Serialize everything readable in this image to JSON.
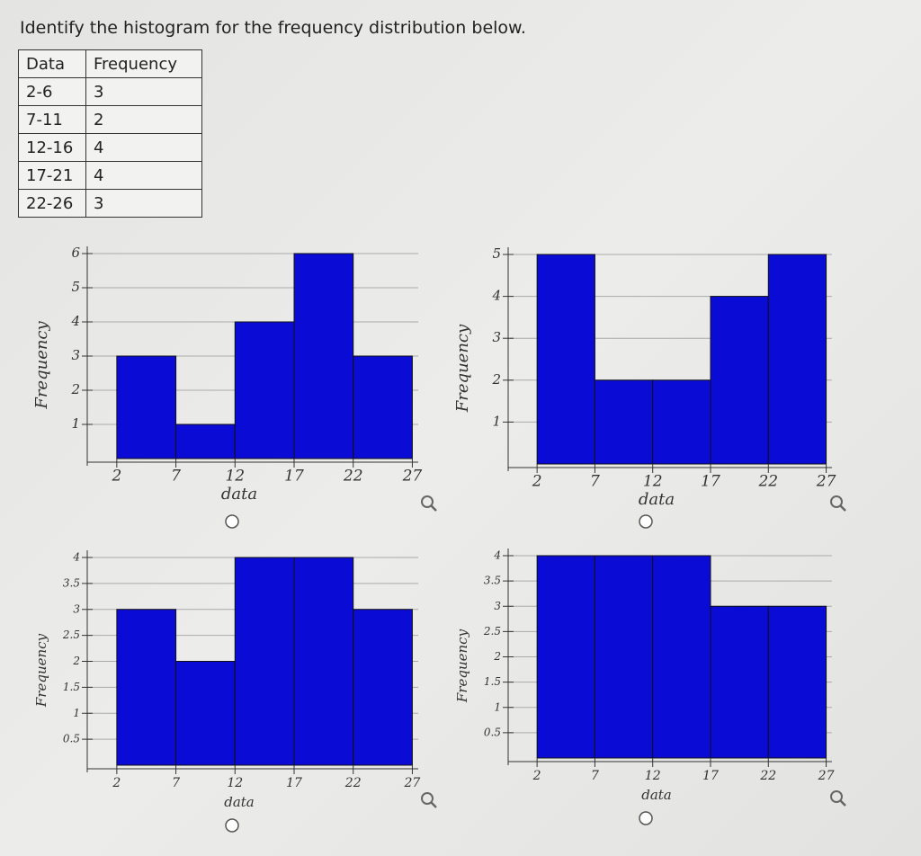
{
  "question": "Identify the histogram for the frequency distribution below.",
  "table": {
    "header": [
      "Data",
      "Frequency"
    ],
    "rows": [
      [
        "2-6",
        "3"
      ],
      [
        "7-11",
        "2"
      ],
      [
        "12-16",
        "4"
      ],
      [
        "17-21",
        "4"
      ],
      [
        "22-26",
        "3"
      ]
    ]
  },
  "chart_data": [
    {
      "type": "histogram",
      "bins": [
        2,
        7,
        12,
        17,
        22,
        27
      ],
      "values": [
        3,
        1,
        4,
        6,
        3
      ],
      "color": "#0b0bd6",
      "xlabel": "data",
      "ylabel": "Frequency",
      "xlim": [
        -0.5,
        27.5
      ],
      "xticks": [
        2,
        7,
        12,
        17,
        22,
        27
      ],
      "ylim": [
        0,
        6
      ],
      "yticks": [
        1,
        2,
        3,
        4,
        5,
        6
      ],
      "grid": true
    },
    {
      "type": "histogram",
      "bins": [
        2,
        7,
        12,
        17,
        22,
        27
      ],
      "values": [
        5,
        2,
        2,
        4,
        5
      ],
      "color": "#0b0bd6",
      "xlabel": "data",
      "ylabel": "Frequency",
      "xlim": [
        -0.5,
        27.5
      ],
      "xticks": [
        2,
        7,
        12,
        17,
        22,
        27
      ],
      "ylim": [
        0,
        5
      ],
      "yticks": [
        1,
        2,
        3,
        4,
        5
      ],
      "grid": true
    },
    {
      "type": "histogram",
      "bins": [
        2,
        7,
        12,
        17,
        22,
        27
      ],
      "values": [
        3,
        2,
        4,
        4,
        3
      ],
      "color": "#0b0bd6",
      "xlabel": "data",
      "ylabel": "Frequency",
      "xlim": [
        -0.5,
        27.5
      ],
      "xticks": [
        2,
        7,
        12,
        17,
        22,
        27
      ],
      "ylim": [
        0,
        4
      ],
      "yticks": [
        0.5,
        1,
        1.5,
        2,
        2.5,
        3,
        3.5,
        4
      ],
      "grid": true
    },
    {
      "type": "histogram",
      "bins": [
        2,
        7,
        12,
        17,
        22,
        27
      ],
      "values": [
        4,
        4,
        4,
        3,
        3
      ],
      "color": "#0b0bd6",
      "xlabel": "data",
      "ylabel": "Frequency",
      "xlim": [
        -0.5,
        27.5
      ],
      "xticks": [
        2,
        7,
        12,
        17,
        22,
        27
      ],
      "ylim": [
        0,
        4
      ],
      "yticks": [
        0.5,
        1,
        1.5,
        2,
        2.5,
        3,
        3.5,
        4
      ],
      "grid": true
    }
  ]
}
